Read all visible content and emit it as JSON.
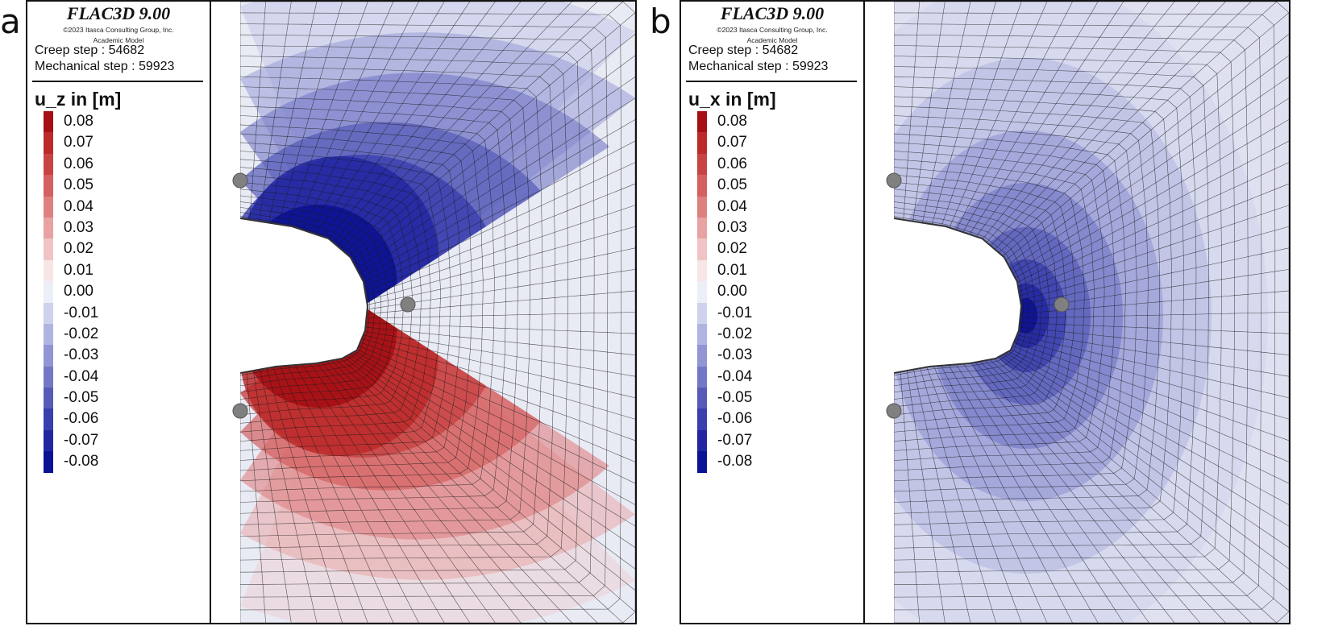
{
  "panels": [
    {
      "letter": "a",
      "software": "FLAC3D 9.00",
      "copyright": "©2023 Itasca Consulting Group, Inc.",
      "edition": "Academic Model",
      "creep_step": "Creep step : 54682",
      "mechanical_step": "Mechanical step : 59923",
      "quantity": "u_z in [m]"
    },
    {
      "letter": "b",
      "software": "FLAC3D 9.00",
      "copyright": "©2023 Itasca Consulting Group, Inc.",
      "edition": "Academic Model",
      "creep_step": "Creep step : 54682",
      "mechanical_step": "Mechanical step : 59923",
      "quantity": "u_x in [m]"
    }
  ],
  "legend_levels": [
    "0.08",
    "0.07",
    "0.06",
    "0.05",
    "0.04",
    "0.03",
    "0.02",
    "0.01",
    "0.00",
    "-0.01",
    "-0.02",
    "-0.03",
    "-0.04",
    "-0.05",
    "-0.06",
    "-0.07",
    "-0.08"
  ],
  "legend_colors": [
    "#a50f15",
    "#bc2a2a",
    "#c84444",
    "#d46060",
    "#df8080",
    "#e8a2a2",
    "#f0c4c4",
    "#f8e6e6",
    "#eceef8",
    "#cfd2ec",
    "#b0b4e0",
    "#9195d3",
    "#7378c6",
    "#565bb9",
    "#3a3fae",
    "#2227a1",
    "#0c1294"
  ],
  "colors": {
    "mesh_line": "#1a1a1a",
    "marker": "#808080",
    "frame": "#111111"
  }
}
